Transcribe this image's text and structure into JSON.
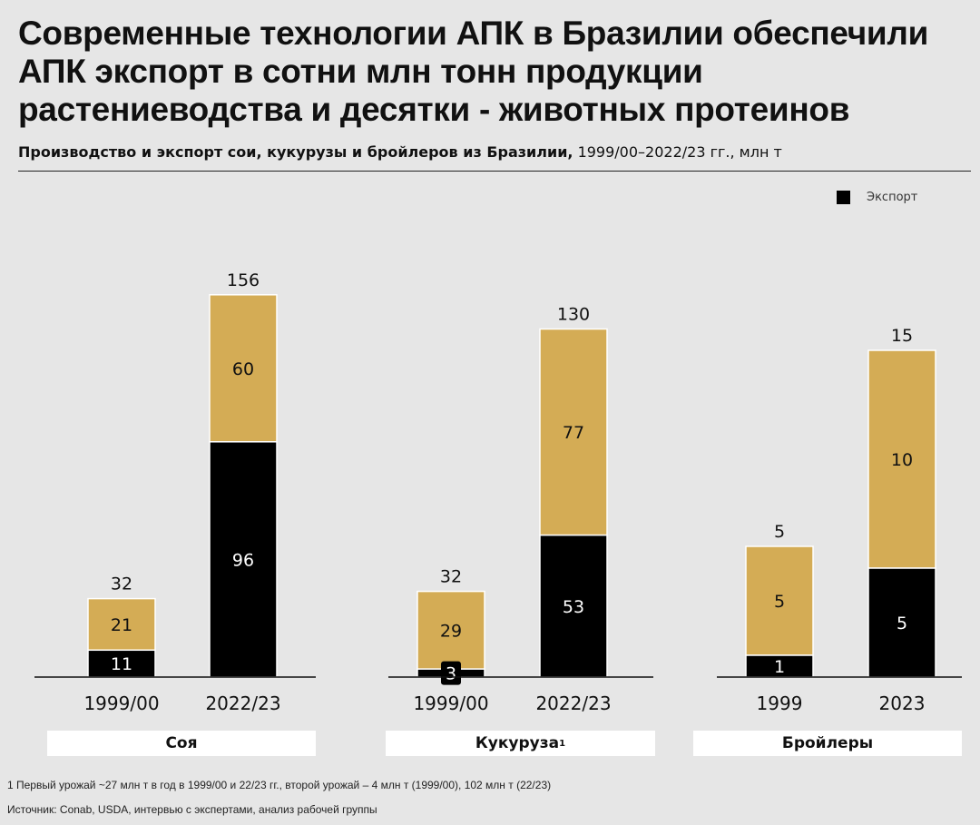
{
  "title": "Современные технологии АПК в Бразилии обеспечили АПК экспорт в сотни млн тонн продукции растениеводства и десятки - животных протеинов",
  "subtitle_bold": "Производство и экспорт сои, кукурузы и бройлеров из Бразилии,",
  "subtitle_rest": " 1999/00–2022/23 гг., млн т",
  "colors": {
    "export": "#000000",
    "domestic": "#d4ac55",
    "background": "#e6e6e6"
  },
  "chart_data": {
    "type": "bar",
    "stacked": true,
    "legend": {
      "entries": [
        "Экспорт"
      ],
      "placement": "top-right"
    },
    "groups": [
      {
        "name": "Соя",
        "categories": [
          "1999/00",
          "2022/23"
        ],
        "export": [
          11,
          96
        ],
        "other": [
          21,
          60
        ],
        "total": [
          32,
          156
        ]
      },
      {
        "name": "Кукуруза",
        "name_sup": "1",
        "categories": [
          "1999/00",
          "2022/23"
        ],
        "export": [
          3,
          53
        ],
        "other": [
          29,
          77
        ],
        "total": [
          32,
          130
        ]
      },
      {
        "name": "Бройлеры",
        "categories": [
          "1999",
          "2023"
        ],
        "export": [
          1,
          5
        ],
        "other": [
          5,
          10
        ],
        "total": [
          5,
          15
        ]
      }
    ]
  },
  "footnote": "1 Первый урожай ~27 млн т в год в 1999/00 и 22/23 гг., второй урожай – 4 млн т (1999/00), 102 млн т (22/23)",
  "source": "Источник: Conab, USDA, интервью с экспертами, анализ рабочей группы"
}
